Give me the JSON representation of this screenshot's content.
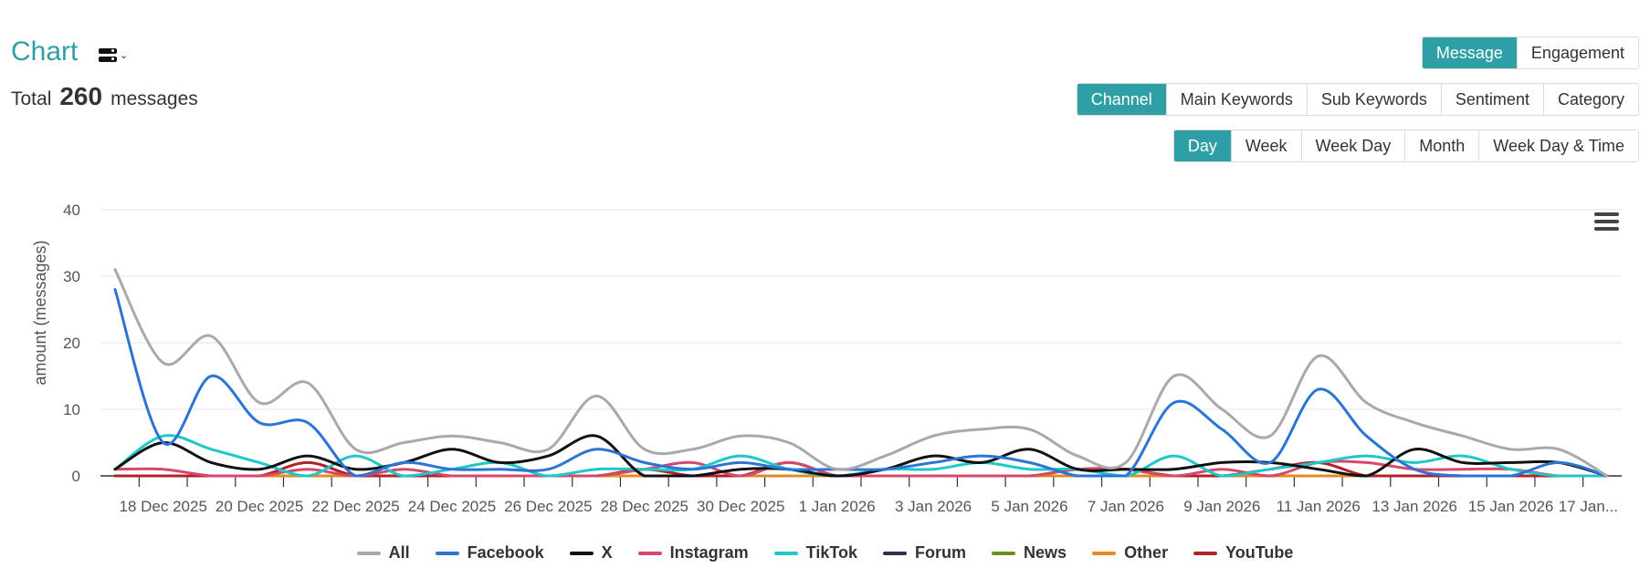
{
  "header": {
    "title": "Chart",
    "view_toggle_icon": "layout-toggle-icon",
    "total_label": "Total",
    "total_value": "260",
    "total_unit": "messages"
  },
  "metric_tabs": [
    {
      "label": "Message",
      "active": true
    },
    {
      "label": "Engagement",
      "active": false
    }
  ],
  "dimension_tabs": [
    {
      "label": "Channel",
      "active": true
    },
    {
      "label": "Main Keywords",
      "active": false
    },
    {
      "label": "Sub Keywords",
      "active": false
    },
    {
      "label": "Sentiment",
      "active": false
    },
    {
      "label": "Category",
      "active": false
    }
  ],
  "period_tabs": [
    {
      "label": "Day",
      "active": true
    },
    {
      "label": "Week",
      "active": false
    },
    {
      "label": "Week Day",
      "active": false
    },
    {
      "label": "Month",
      "active": false
    },
    {
      "label": "Week Day & Time",
      "active": false
    }
  ],
  "menu_icon": "hamburger-menu-icon",
  "chart_data": {
    "type": "line",
    "ylabel": "amount (messages)",
    "xlabel": "",
    "ylim": [
      0,
      40
    ],
    "yticks": [
      0,
      10,
      20,
      30,
      40
    ],
    "grid": true,
    "legend_position": "bottom",
    "x": [
      "17 Dec 2025",
      "18 Dec 2025",
      "19 Dec 2025",
      "20 Dec 2025",
      "21 Dec 2025",
      "22 Dec 2025",
      "23 Dec 2025",
      "24 Dec 2025",
      "25 Dec 2025",
      "26 Dec 2025",
      "27 Dec 2025",
      "28 Dec 2025",
      "29 Dec 2025",
      "30 Dec 2025",
      "31 Dec 2025",
      "1 Jan 2026",
      "2 Jan 2026",
      "3 Jan 2026",
      "4 Jan 2026",
      "5 Jan 2026",
      "6 Jan 2026",
      "7 Jan 2026",
      "8 Jan 2026",
      "9 Jan 2026",
      "10 Jan 2026",
      "11 Jan 2026",
      "12 Jan 2026",
      "13 Jan 2026",
      "14 Jan 2026",
      "15 Jan 2026",
      "16 Jan 2026",
      "17 Jan 2026"
    ],
    "x_tick_labels": [
      "18 Dec 2025",
      "20 Dec 2025",
      "22 Dec 2025",
      "24 Dec 2025",
      "26 Dec 2025",
      "28 Dec 2025",
      "30 Dec 2025",
      "1 Jan 2026",
      "3 Jan 2026",
      "5 Jan 2026",
      "7 Jan 2026",
      "9 Jan 2026",
      "11 Jan 2026",
      "13 Jan 2026",
      "15 Jan 2026",
      "17 Jan..."
    ],
    "x_tick_positions": [
      1,
      3,
      5,
      7,
      9,
      11,
      13,
      15,
      17,
      19,
      21,
      23,
      25,
      27,
      29,
      31
    ],
    "series": [
      {
        "name": "All",
        "color": "#a9a9a9",
        "values": [
          31,
          17,
          21,
          11,
          14,
          4,
          5,
          6,
          5,
          4,
          12,
          4,
          4,
          6,
          5,
          1,
          3,
          6,
          7,
          7,
          3,
          2,
          15,
          10,
          6,
          18,
          11,
          8,
          6,
          4,
          4,
          0
        ]
      },
      {
        "name": "Facebook",
        "color": "#2b74d6",
        "values": [
          28,
          5,
          15,
          8,
          8,
          0,
          2,
          1,
          1,
          1,
          4,
          2,
          1,
          2,
          1,
          1,
          1,
          2,
          3,
          2,
          0,
          0,
          11,
          7,
          2,
          13,
          6,
          1,
          0,
          0,
          2,
          0
        ]
      },
      {
        "name": "X",
        "color": "#111111",
        "values": [
          1,
          5,
          2,
          1,
          3,
          1,
          2,
          4,
          2,
          3,
          6,
          0,
          0,
          1,
          1,
          0,
          1,
          3,
          2,
          4,
          1,
          1,
          1,
          2,
          2,
          1,
          0,
          4,
          2,
          2,
          2,
          0
        ]
      },
      {
        "name": "Instagram",
        "color": "#d6496a",
        "values": [
          1,
          1,
          0,
          0,
          1,
          0,
          1,
          0,
          0,
          0,
          0,
          1,
          2,
          0,
          2,
          0,
          0,
          0,
          0,
          0,
          1,
          1,
          0,
          1,
          0,
          2,
          2,
          1,
          1,
          1,
          0,
          0
        ]
      },
      {
        "name": "TikTok",
        "color": "#1ec8c8",
        "values": [
          1,
          6,
          4,
          2,
          0,
          3,
          0,
          1,
          2,
          0,
          1,
          1,
          1,
          3,
          1,
          0,
          1,
          1,
          2,
          1,
          1,
          0,
          3,
          0,
          1,
          2,
          3,
          2,
          3,
          1,
          0,
          0
        ]
      },
      {
        "name": "Forum",
        "color": "#2e2e52",
        "values": [
          0,
          0,
          0,
          0,
          0,
          0,
          0,
          0,
          0,
          0,
          0,
          0,
          0,
          0,
          0,
          0,
          0,
          0,
          0,
          0,
          0,
          0,
          0,
          0,
          0,
          0,
          0,
          0,
          0,
          0,
          0,
          0
        ]
      },
      {
        "name": "News",
        "color": "#6b8e1f",
        "values": [
          0,
          0,
          0,
          0,
          0,
          0,
          0,
          0,
          0,
          0,
          0,
          0,
          0,
          0,
          0,
          0,
          0,
          0,
          0,
          0,
          0,
          0,
          0,
          0,
          0,
          0,
          0,
          0,
          0,
          0,
          0,
          0
        ]
      },
      {
        "name": "Other",
        "color": "#e58a1f",
        "values": [
          0,
          0,
          0,
          0,
          0,
          0,
          0,
          0,
          0,
          0,
          0,
          0,
          0,
          0,
          0,
          0,
          0,
          0,
          0,
          0,
          0,
          0,
          0,
          0,
          0,
          0,
          0,
          0,
          0,
          0,
          0,
          0
        ]
      },
      {
        "name": "YouTube",
        "color": "#b2202a",
        "values": [
          0,
          0,
          0,
          0,
          2,
          0,
          0,
          0,
          0,
          0,
          0,
          1,
          0,
          0,
          2,
          0,
          0,
          0,
          0,
          0,
          1,
          1,
          0,
          0,
          1,
          2,
          0,
          0,
          0,
          0,
          0,
          0
        ]
      }
    ]
  }
}
